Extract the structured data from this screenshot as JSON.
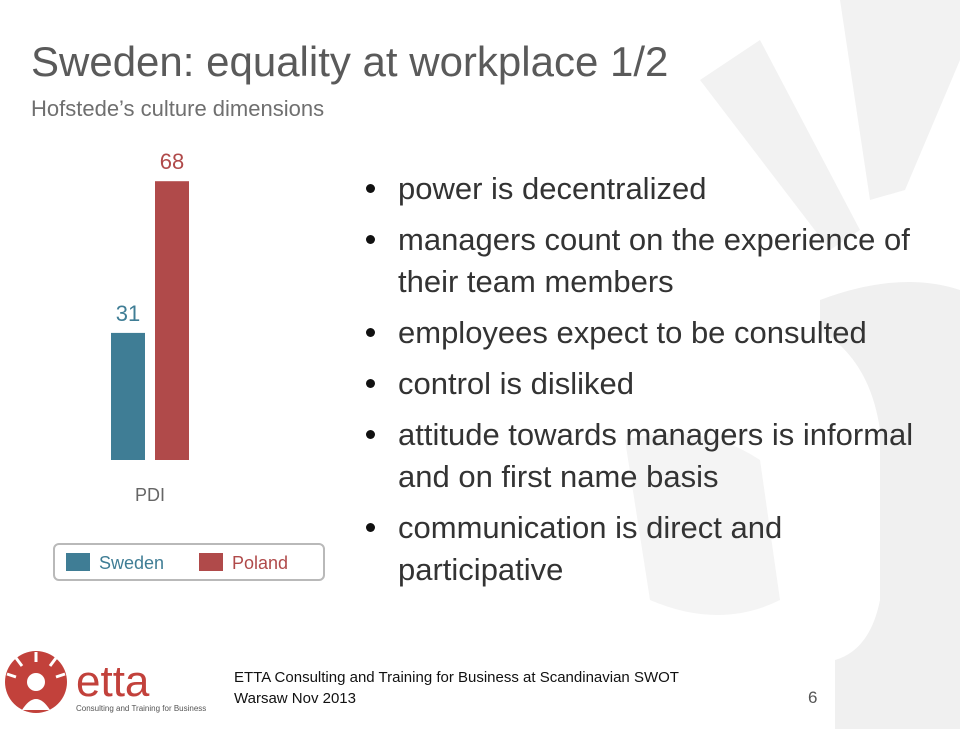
{
  "slide": {
    "title": "Sweden: equality at workplace 1/2",
    "subtitle": "Hofstede’s culture dimensions"
  },
  "chart_data": {
    "type": "bar",
    "categories": [
      "PDI"
    ],
    "series": [
      {
        "name": "Sweden",
        "values": [
          31
        ],
        "color": "#3f7d95"
      },
      {
        "name": "Poland",
        "values": [
          68
        ],
        "color": "#b04a4a"
      }
    ],
    "legend": "bottom",
    "grid": false
  },
  "bullets": [
    "power is decentralized",
    "managers count on the experience of their team members",
    "employees expect to be consulted",
    "control is disliked",
    "attitude towards managers is informal and on first name basis",
    "communication is direct and participative"
  ],
  "footer": {
    "logo_text": "etta",
    "logo_tagline": "Consulting and Training for Business",
    "line1": "ETTA Consulting and Training for Business at Scandinavian SWOT",
    "line2": "Warsaw Nov 2013",
    "page_number": "6"
  },
  "colors": {
    "brand_red": "#c2413b",
    "text_gray": "#5a5a5a",
    "watermark": "#f3f3f3"
  }
}
